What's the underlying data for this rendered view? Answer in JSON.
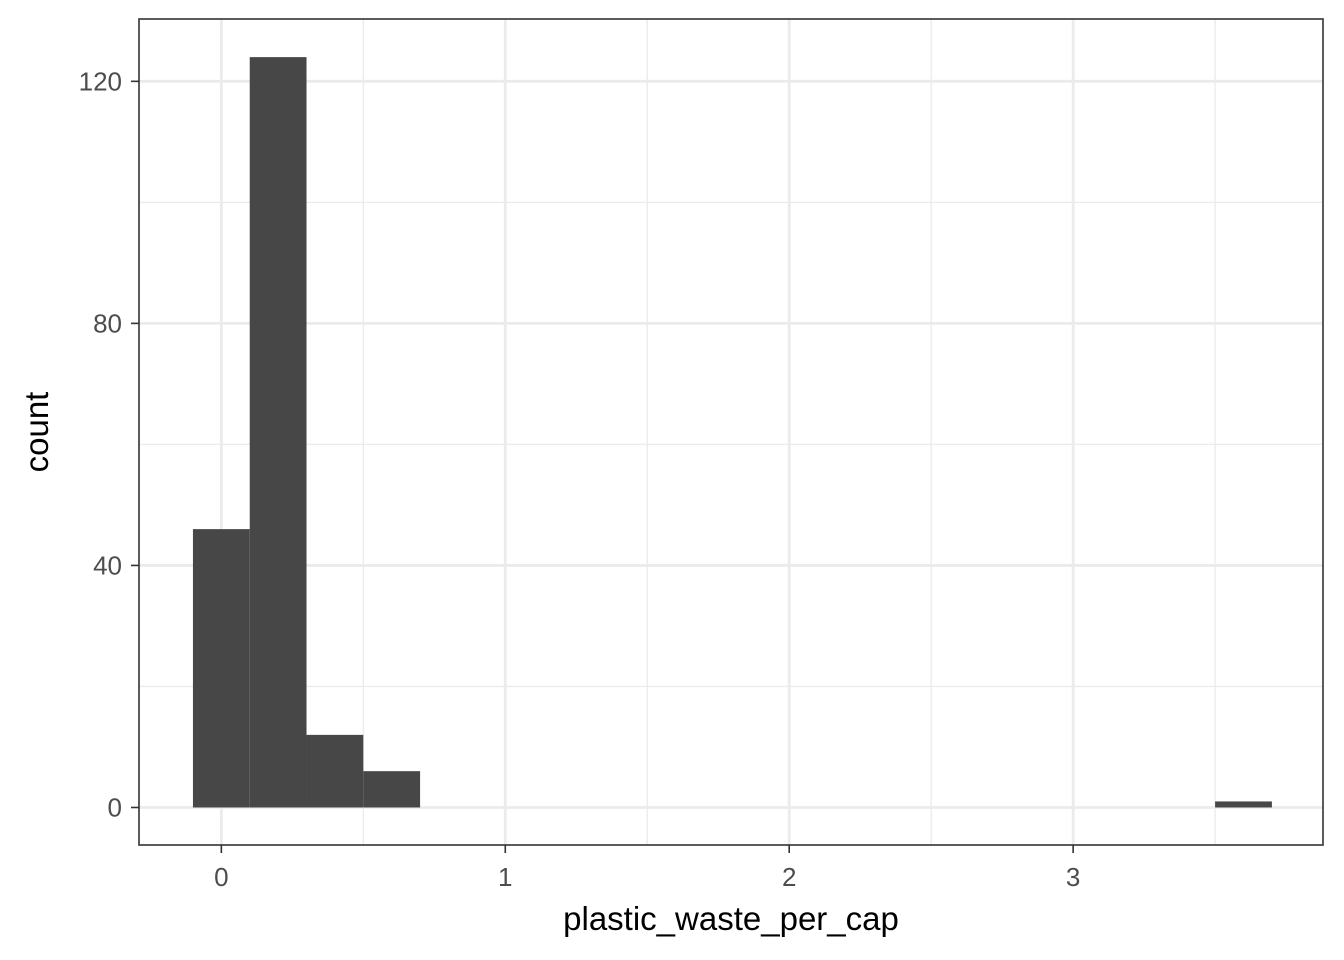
{
  "chart_data": {
    "type": "histogram",
    "title": "",
    "xlabel": "plastic_waste_per_cap",
    "ylabel": "count",
    "xlim": [
      -0.29,
      3.88
    ],
    "ylim": [
      -6.2,
      130.3
    ],
    "x_ticks": [
      0,
      1,
      2,
      3
    ],
    "x_tick_labels": [
      "0",
      "1",
      "2",
      "3"
    ],
    "y_ticks": [
      0,
      40,
      80,
      120
    ],
    "y_tick_labels": [
      "0",
      "40",
      "80",
      "120"
    ],
    "x_minor_ticks": [
      0.5,
      1.5,
      2.5,
      3.5
    ],
    "y_minor_ticks": [
      20,
      60,
      100
    ],
    "grid": true,
    "bar_color": "#474747",
    "bins": [
      {
        "x0": -0.1,
        "x1": 0.1,
        "count": 46
      },
      {
        "x0": 0.1,
        "x1": 0.3,
        "count": 124
      },
      {
        "x0": 0.3,
        "x1": 0.5,
        "count": 12
      },
      {
        "x0": 0.5,
        "x1": 0.7,
        "count": 6
      },
      {
        "x0": 0.7,
        "x1": 0.9,
        "count": 0
      },
      {
        "x0": 0.9,
        "x1": 1.1,
        "count": 0
      },
      {
        "x0": 1.1,
        "x1": 1.3,
        "count": 0
      },
      {
        "x0": 1.3,
        "x1": 1.5,
        "count": 0
      },
      {
        "x0": 1.5,
        "x1": 1.7,
        "count": 0
      },
      {
        "x0": 1.7,
        "x1": 1.9,
        "count": 0
      },
      {
        "x0": 1.9,
        "x1": 2.1,
        "count": 0
      },
      {
        "x0": 2.1,
        "x1": 2.3,
        "count": 0
      },
      {
        "x0": 2.3,
        "x1": 2.5,
        "count": 0
      },
      {
        "x0": 2.5,
        "x1": 2.7,
        "count": 0
      },
      {
        "x0": 2.7,
        "x1": 2.9,
        "count": 0
      },
      {
        "x0": 2.9,
        "x1": 3.1,
        "count": 0
      },
      {
        "x0": 3.1,
        "x1": 3.3,
        "count": 0
      },
      {
        "x0": 3.3,
        "x1": 3.5,
        "count": 0
      },
      {
        "x0": 3.5,
        "x1": 3.7,
        "count": 1
      }
    ]
  }
}
